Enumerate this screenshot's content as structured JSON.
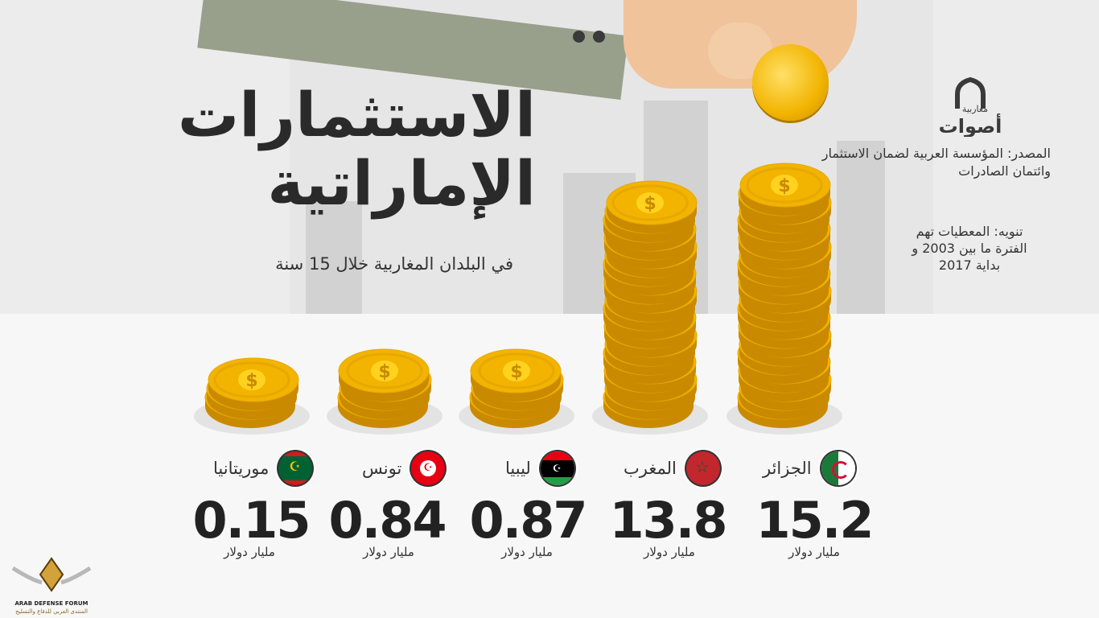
{
  "title_line1": "الاستثمارات",
  "title_line2": "الإماراتية",
  "subtitle": "في البلدان المغاربية خلال 15 سنة",
  "source": "المصدر: المؤسسة العربية لضمان الاستثمار وائتمان الصادرات",
  "note": "تنويه: المعطيات تهم الفترة ما بين 2003 و بداية 2017",
  "logo_text_top": "مغاربية",
  "logo_text_main": "أصوات",
  "watermark_en": "ARAB DEFENSE FORUM",
  "watermark_ar": "المنتدى العربي للدفاع والتسليح",
  "colors": {
    "coin": "#f2b400",
    "coin_dark": "#c98a00",
    "text": "#2b2b2b"
  },
  "chart_data": {
    "type": "bar",
    "title": "الاستثمارات الإماراتية",
    "unit": "مليار دولار",
    "categories": [
      "الجزائر",
      "المغرب",
      "ليبيا",
      "تونس",
      "موريتانيا"
    ],
    "values": [
      15.2,
      13.8,
      0.87,
      0.84,
      0.15
    ],
    "value_labels": [
      "15.2",
      "13.8",
      "0.87",
      "0.84",
      "0.15"
    ],
    "flags": [
      "algeria-flag-icon",
      "morocco-flag-icon",
      "libya-flag-icon",
      "tunisia-flag-icon",
      "mauritania-flag-icon"
    ]
  }
}
